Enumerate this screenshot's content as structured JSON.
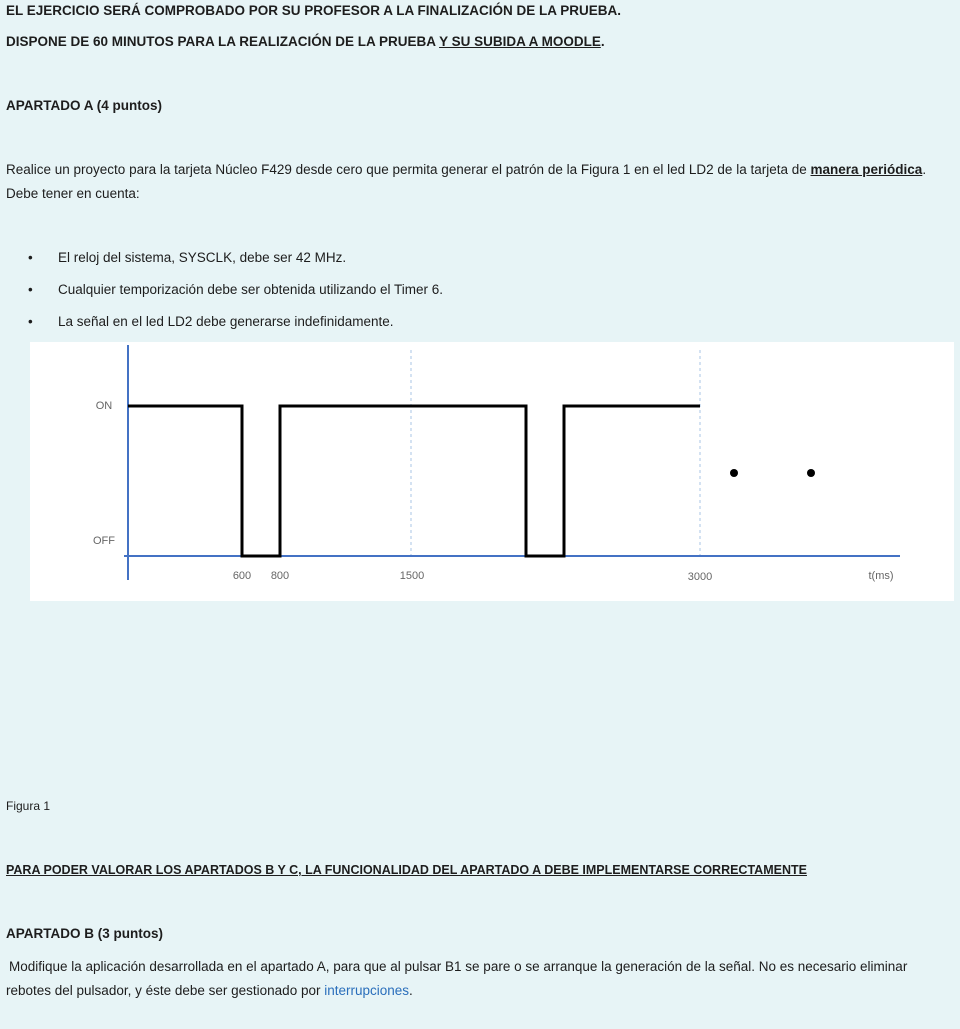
{
  "header": {
    "line1": "EL EJERCICIO SERÁ COMPROBADO POR SU PROFESOR A LA FINALIZACIÓN DE LA PRUEBA.",
    "line2": "DISPONE DE 60 MINUTOS PARA LA REALIZACIÓN DE LA PRUEBA",
    "line2_underlined": "Y SU SUBIDA A MOODLE",
    "line2_end": "."
  },
  "section_a": {
    "title": "APARTADO A (4 puntos)",
    "intro": "Realice un proyecto para la tarjeta Núcleo F429 desde cero que permita generar el patrón de la Figura 1 en el led LD2 de la tarjeta de",
    "intro_emphasis": "manera periódica",
    "intro_end": ". Debe tener en cuenta:",
    "bullets": [
      "El reloj del sistema, SYSCLK, debe ser 42 MHz.",
      "Cualquier temporización debe ser obtenida utilizando el Timer 6.",
      "La señal en el led LD2 debe generarse indefinidamente."
    ]
  },
  "figure": {
    "y_labels": [
      "ON",
      "OFF"
    ],
    "x_labels": [
      "600",
      "800",
      "1500",
      "3000",
      "t(ms)"
    ],
    "caption": "Figura 1"
  },
  "notice": "PARA PODER VALORAR LOS APARTADOS B Y C, LA FUNCIONALIDAD DEL APARTADO A DEBE IMPLEMENTARSE CORRECTAMENTE",
  "section_b": {
    "title": "APARTADO B (3 puntos)",
    "text": "Modifique la aplicación desarrollada en el apartado A, para que al pulsar B1 se pare o se arranque la generación de la señal. No es necesario eliminar rebotes del pulsador, y éste debe ser gestionado por",
    "link": "interrupciones",
    "end": "."
  }
}
